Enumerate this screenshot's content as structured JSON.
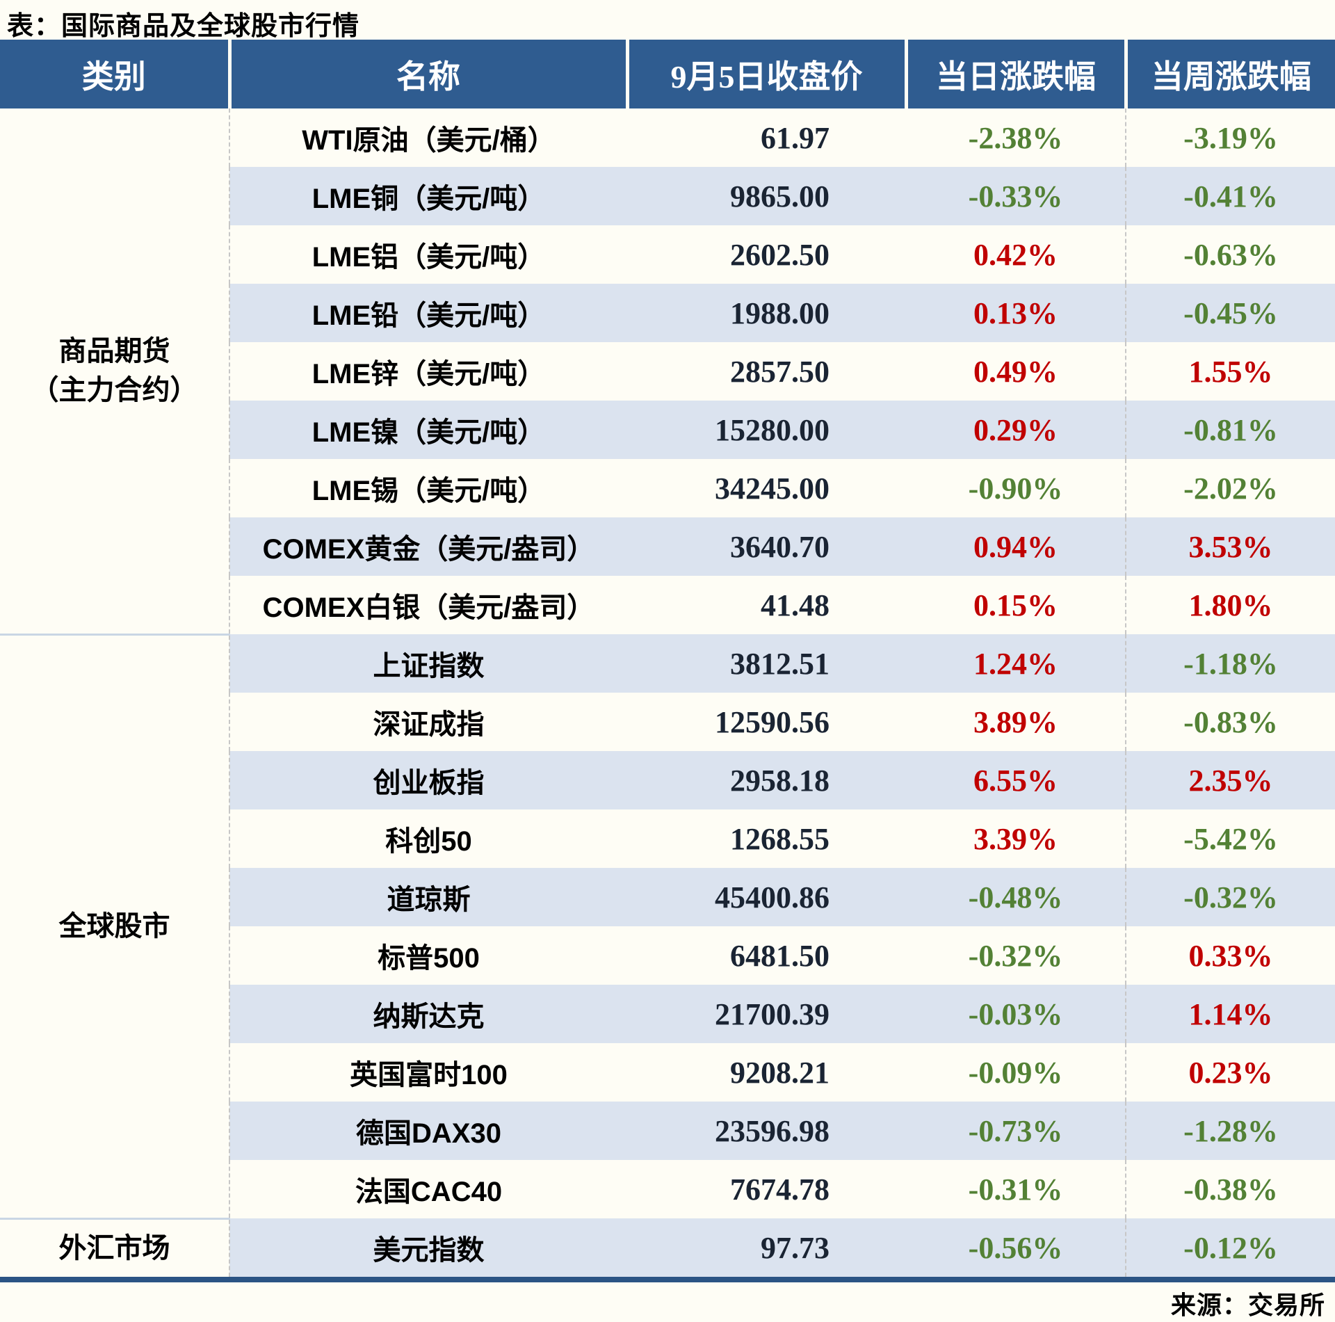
{
  "colors": {
    "header_bg": "#2F5C90",
    "stripe_row": "#DBE3EF",
    "page_bg": "#FEFDF5",
    "positive": "#C00000",
    "negative": "#538135",
    "price_text": "#1A2433",
    "bottom_border": "#2B5484",
    "group_divider": "#C9D6E4"
  },
  "chart_data": {
    "type": "table",
    "title": "表：国际商品及全球股市行情",
    "source": "来源：交易所",
    "columns": [
      "类别",
      "名称",
      "9月5日收盘价",
      "当日涨跌幅",
      "当周涨跌幅"
    ],
    "groups": [
      {
        "category": "商品期货（主力合约）",
        "category_lines": [
          "商品期货",
          "（主力合约）"
        ],
        "rows": [
          {
            "name": "WTI原油（美元/桶）",
            "close": "61.97",
            "day": "-2.38%",
            "week": "-3.19%"
          },
          {
            "name": "LME铜（美元/吨）",
            "close": "9865.00",
            "day": "-0.33%",
            "week": "-0.41%"
          },
          {
            "name": "LME铝（美元/吨）",
            "close": "2602.50",
            "day": "0.42%",
            "week": "-0.63%"
          },
          {
            "name": "LME铅（美元/吨）",
            "close": "1988.00",
            "day": "0.13%",
            "week": "-0.45%"
          },
          {
            "name": "LME锌（美元/吨）",
            "close": "2857.50",
            "day": "0.49%",
            "week": "1.55%"
          },
          {
            "name": "LME镍（美元/吨）",
            "close": "15280.00",
            "day": "0.29%",
            "week": "-0.81%"
          },
          {
            "name": "LME锡（美元/吨）",
            "close": "34245.00",
            "day": "-0.90%",
            "week": "-2.02%"
          },
          {
            "name": "COMEX黄金（美元/盎司）",
            "close": "3640.70",
            "day": "0.94%",
            "week": "3.53%"
          },
          {
            "name": "COMEX白银（美元/盎司）",
            "close": "41.48",
            "day": "0.15%",
            "week": "1.80%"
          }
        ]
      },
      {
        "category": "全球股市",
        "category_lines": [
          "全球股市"
        ],
        "rows": [
          {
            "name": "上证指数",
            "close": "3812.51",
            "day": "1.24%",
            "week": "-1.18%"
          },
          {
            "name": "深证成指",
            "close": "12590.56",
            "day": "3.89%",
            "week": "-0.83%"
          },
          {
            "name": "创业板指",
            "close": "2958.18",
            "day": "6.55%",
            "week": "2.35%"
          },
          {
            "name": "科创50",
            "close": "1268.55",
            "day": "3.39%",
            "week": "-5.42%"
          },
          {
            "name": "道琼斯",
            "close": "45400.86",
            "day": "-0.48%",
            "week": "-0.32%"
          },
          {
            "name": "标普500",
            "close": "6481.50",
            "day": "-0.32%",
            "week": "0.33%"
          },
          {
            "name": "纳斯达克",
            "close": "21700.39",
            "day": "-0.03%",
            "week": "1.14%"
          },
          {
            "name": "英国富时100",
            "close": "9208.21",
            "day": "-0.09%",
            "week": "0.23%"
          },
          {
            "name": "德国DAX30",
            "close": "23596.98",
            "day": "-0.73%",
            "week": "-1.28%"
          },
          {
            "name": "法国CAC40",
            "close": "7674.78",
            "day": "-0.31%",
            "week": "-0.38%"
          }
        ]
      },
      {
        "category": "外汇市场",
        "category_lines": [
          "外汇市场"
        ],
        "rows": [
          {
            "name": "美元指数",
            "close": "97.73",
            "day": "-0.56%",
            "week": "-0.12%"
          }
        ]
      }
    ]
  }
}
